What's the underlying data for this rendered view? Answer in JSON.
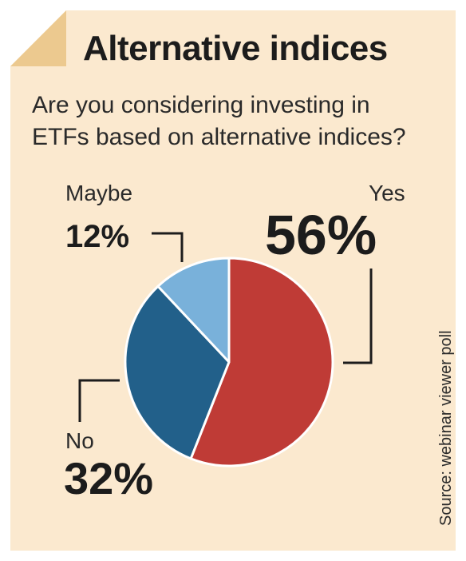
{
  "title": "Alternative indices",
  "subtitle": "Are you considering investing in ETFs based on alternative indices?",
  "source": "Source: webinar viewer poll",
  "colors": {
    "background": "#fbe9cf",
    "corner": "#ecc98f",
    "yes": "#bf3b36",
    "no": "#22608a",
    "maybe": "#79b1da"
  },
  "chart_data": {
    "type": "pie",
    "title": "Alternative indices",
    "subtitle": "Are you considering investing in ETFs based on alternative indices?",
    "slices": [
      {
        "label": "Yes",
        "value": 56,
        "display": "56%"
      },
      {
        "label": "No",
        "value": 32,
        "display": "32%"
      },
      {
        "label": "Maybe",
        "value": 12,
        "display": "12%"
      }
    ]
  }
}
